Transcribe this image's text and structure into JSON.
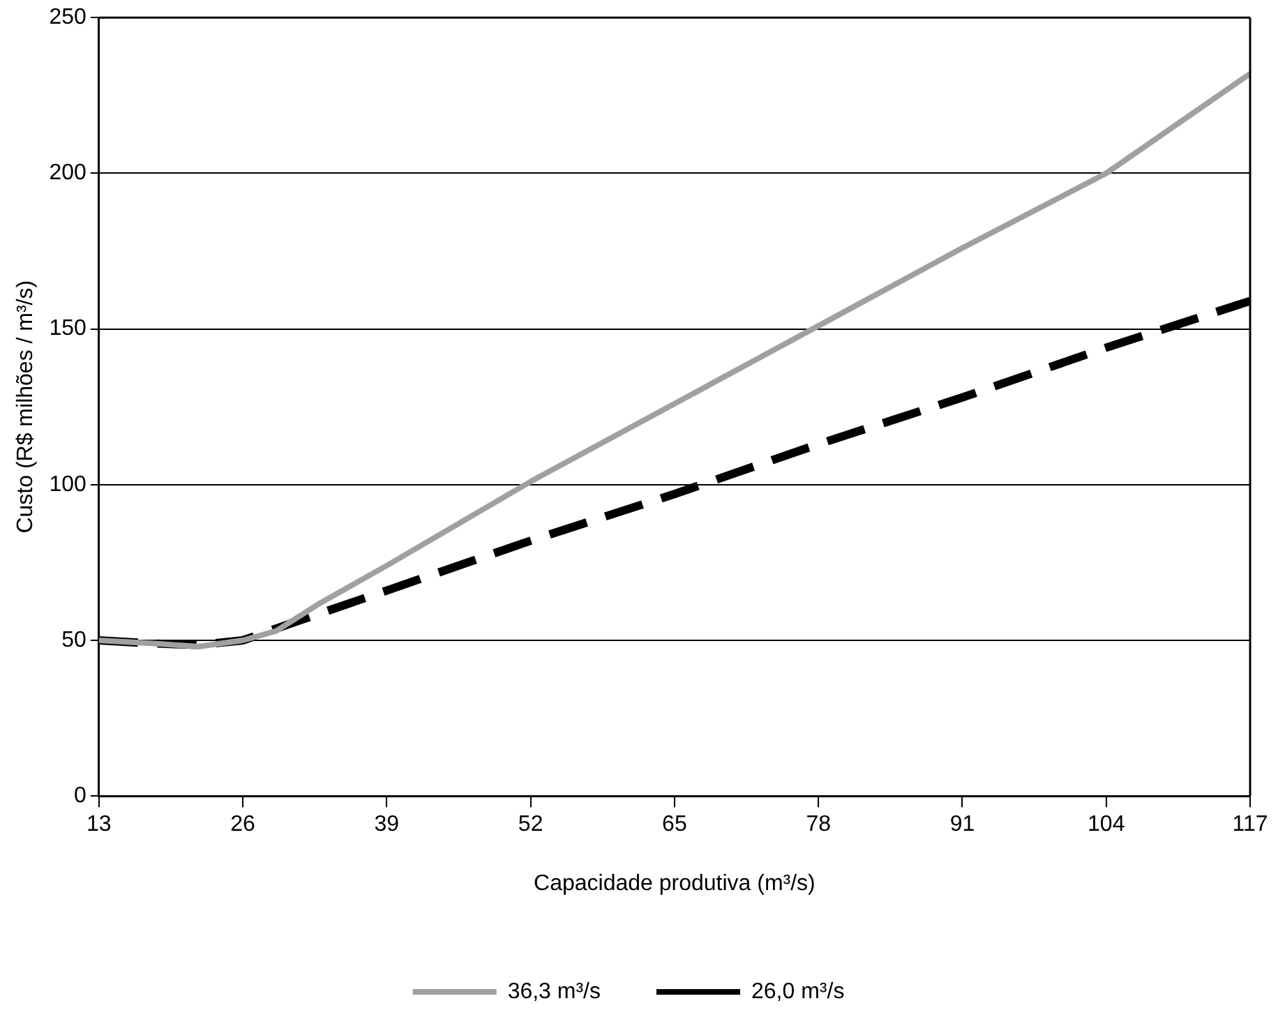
{
  "chart_data": {
    "type": "line",
    "xlabel": "Capacidade produtiva (m³/s)",
    "ylabel": "Custo (R$ milhões / m³/s)",
    "xlim": [
      13,
      117
    ],
    "xticks": [
      13,
      26,
      39,
      52,
      65,
      78,
      91,
      104,
      117
    ],
    "ylim": [
      0,
      250
    ],
    "yticks": [
      0,
      50,
      100,
      150,
      200,
      250
    ],
    "grid": "y",
    "legend": "bottom",
    "marker": "none",
    "series": [
      {
        "name": "36,3 m³/s",
        "color": "#a0a0a0",
        "line_style": "solid",
        "x": [
          13,
          18,
          22,
          26,
          29,
          33,
          39,
          52,
          65,
          78,
          91,
          104,
          117
        ],
        "values": [
          50,
          49,
          48,
          50,
          53,
          62,
          74,
          101,
          126,
          151,
          176,
          200,
          232
        ]
      },
      {
        "name": "26,0 m³/s",
        "color": "#000000",
        "line_style": "dashed",
        "x": [
          13,
          18,
          22,
          26,
          30,
          39,
          52,
          65,
          78,
          91,
          104,
          117
        ],
        "values": [
          50,
          49,
          48.5,
          50,
          55,
          66,
          82,
          97,
          113,
          128,
          144,
          159
        ]
      }
    ]
  }
}
